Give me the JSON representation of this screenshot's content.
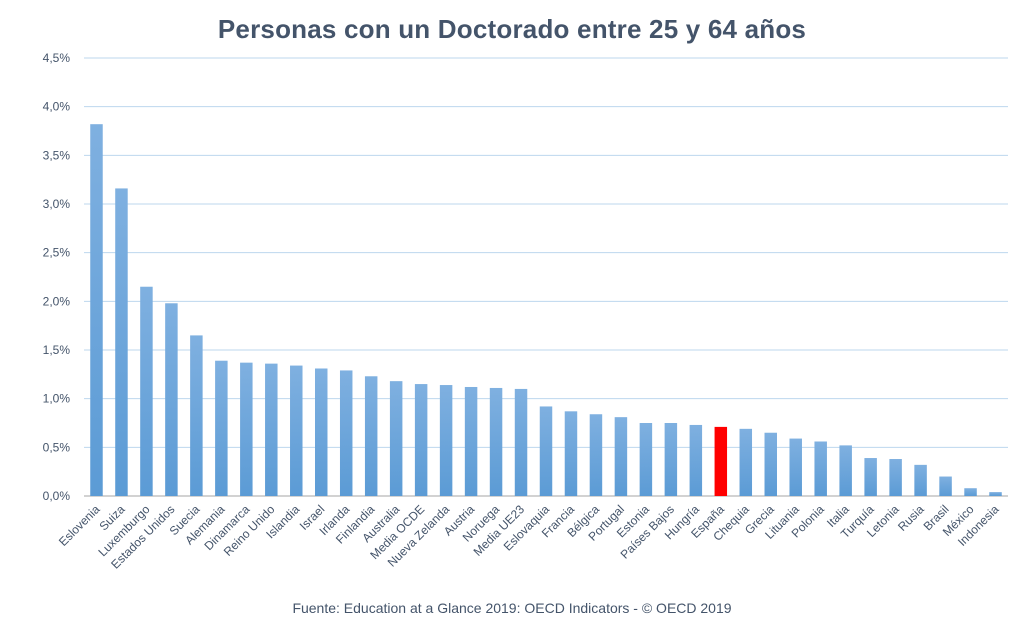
{
  "chart_data": {
    "type": "bar",
    "title": "Personas con un Doctorado entre 25 y 64 años",
    "xlabel": "",
    "ylabel": "",
    "ylim": [
      0,
      4.5
    ],
    "y_ticks": [
      "0,0%",
      "0,5%",
      "1,0%",
      "1,5%",
      "2,0%",
      "2,5%",
      "3,0%",
      "3,5%",
      "4,0%",
      "4,5%"
    ],
    "grid": true,
    "legend": "none",
    "categories": [
      "Eslovenia",
      "Suiza",
      "Luxemburgo",
      "Estados Unidos",
      "Suecia",
      "Alemania",
      "Dinamarca",
      "Reino Unido",
      "Islandia",
      "Israel",
      "Irlanda",
      "Finlandia",
      "Australia",
      "Media OCDE",
      "Nueva Zelanda",
      "Austria",
      "Noruega",
      "Media UE23",
      "Eslovaquia",
      "Francia",
      "Bélgica",
      "Portugal",
      "Estonia",
      "Países Bajos",
      "Hungría",
      "España",
      "Chequia",
      "Grecia",
      "Lituania",
      "Polonia",
      "Italia",
      "Turquía",
      "Letonia",
      "Rusia",
      "Brasil",
      "México",
      "Indonesia"
    ],
    "values": [
      3.82,
      3.16,
      2.15,
      1.98,
      1.65,
      1.39,
      1.37,
      1.36,
      1.34,
      1.31,
      1.29,
      1.23,
      1.18,
      1.15,
      1.14,
      1.12,
      1.11,
      1.1,
      0.92,
      0.87,
      0.84,
      0.81,
      0.75,
      0.75,
      0.73,
      0.71,
      0.69,
      0.65,
      0.59,
      0.56,
      0.52,
      0.39,
      0.38,
      0.32,
      0.2,
      0.08,
      0.04
    ],
    "highlight_category": "España",
    "colors": {
      "bar": "#5b9bd5",
      "bar_light": "#7fb0e0",
      "highlight": "#ff0000",
      "grid": "#bdd7ee",
      "text": "#44546a"
    }
  },
  "source_text": "Fuente: Education at a Glance 2019: OECD Indicators - © OECD 2019"
}
